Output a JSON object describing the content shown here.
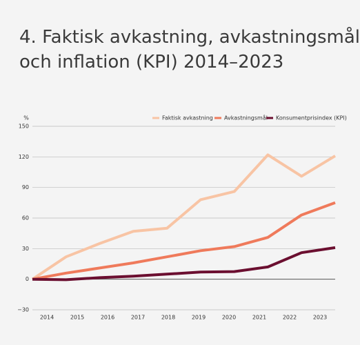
{
  "chart_data": {
    "type": "line",
    "title_lines": [
      "4. Faktisk avkastning, avkastningsmål",
      "och inflation (KPI) 2014–2023"
    ],
    "y_label": "%",
    "categories": [
      "2014",
      "2015",
      "2016",
      "2017",
      "2018",
      "2019",
      "2020",
      "2021",
      "2022",
      "2023"
    ],
    "series": [
      {
        "name": "Faktisk avkastning",
        "color": "#f8c4a4",
        "values": [
          0,
          22,
          35,
          47,
          50,
          78,
          86,
          122,
          101,
          121
        ]
      },
      {
        "name": "Avkastningsmål",
        "color": "#ef7a5b",
        "values": [
          0,
          6,
          11,
          16,
          22,
          28,
          32,
          41,
          63,
          75
        ]
      },
      {
        "name": "Konsumentprisindex (KPI)",
        "color": "#6b0f30",
        "values": [
          0,
          -0.5,
          1.5,
          3,
          5,
          7,
          7.5,
          12,
          26,
          31
        ]
      }
    ],
    "ylim": [
      -30,
      150
    ],
    "yticks": [
      {
        "value": -30,
        "label": "−30"
      },
      0,
      30,
      60,
      90,
      120,
      150
    ],
    "grid": true
  }
}
